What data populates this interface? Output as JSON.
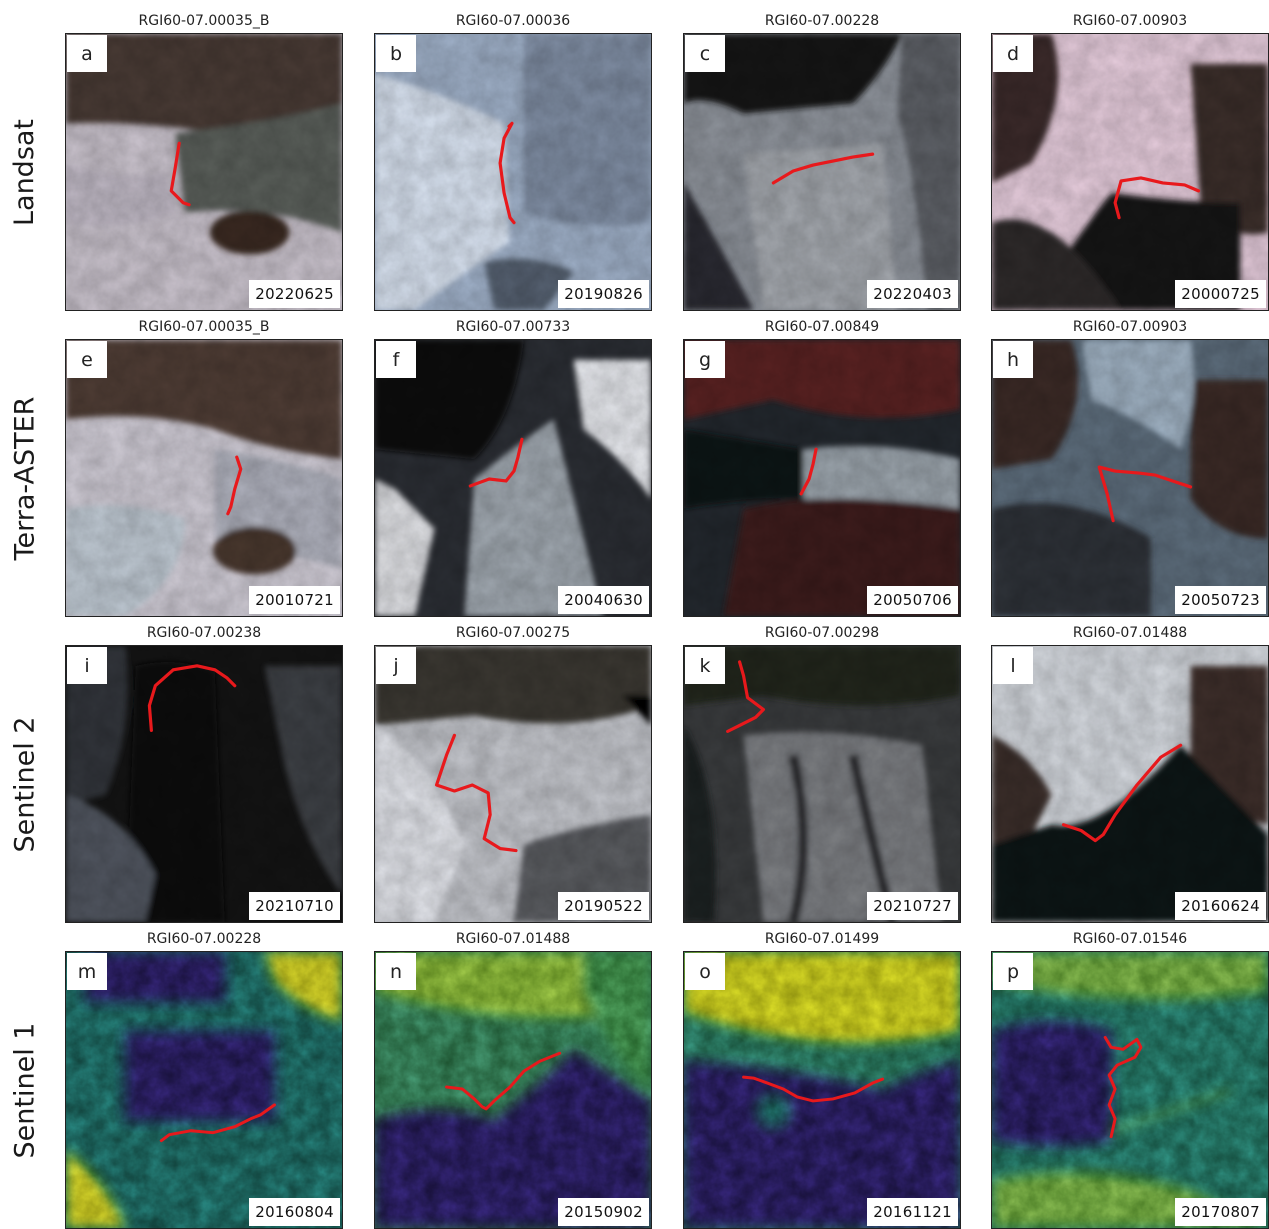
{
  "rows": [
    {
      "label": "Landsat",
      "panels": [
        {
          "id": "a",
          "glacier": "RGI60-07.00035_B",
          "date": "20220625"
        },
        {
          "id": "b",
          "glacier": "RGI60-07.00036",
          "date": "20190826"
        },
        {
          "id": "c",
          "glacier": "RGI60-07.00228",
          "date": "20220403"
        },
        {
          "id": "d",
          "glacier": "RGI60-07.00903",
          "date": "20000725"
        }
      ]
    },
    {
      "label": "Terra-ASTER",
      "panels": [
        {
          "id": "e",
          "glacier": "RGI60-07.00035_B",
          "date": "20010721"
        },
        {
          "id": "f",
          "glacier": "RGI60-07.00733",
          "date": "20040630"
        },
        {
          "id": "g",
          "glacier": "RGI60-07.00849",
          "date": "20050706"
        },
        {
          "id": "h",
          "glacier": "RGI60-07.00903",
          "date": "20050723"
        }
      ]
    },
    {
      "label": "Sentinel 2",
      "panels": [
        {
          "id": "i",
          "glacier": "RGI60-07.00238",
          "date": "20210710"
        },
        {
          "id": "j",
          "glacier": "RGI60-07.00275",
          "date": "20190522"
        },
        {
          "id": "k",
          "glacier": "RGI60-07.00298",
          "date": "20210727"
        },
        {
          "id": "l",
          "glacier": "RGI60-07.01488",
          "date": "20160624"
        }
      ]
    },
    {
      "label": "Sentinel 1",
      "panels": [
        {
          "id": "m",
          "glacier": "RGI60-07.00228",
          "date": "20160804"
        },
        {
          "id": "n",
          "glacier": "RGI60-07.01488",
          "date": "20150902"
        },
        {
          "id": "o",
          "glacier": "RGI60-07.01499",
          "date": "20161121"
        },
        {
          "id": "p",
          "glacier": "RGI60-07.01546",
          "date": "20170807"
        }
      ]
    }
  ],
  "colors": {
    "calving_front_line": "#e8191c",
    "label_box": "#ffffff",
    "sar_low": "#3b2a86",
    "sar_mid": "#2b8c8a",
    "sar_high": "#e5e32a"
  }
}
